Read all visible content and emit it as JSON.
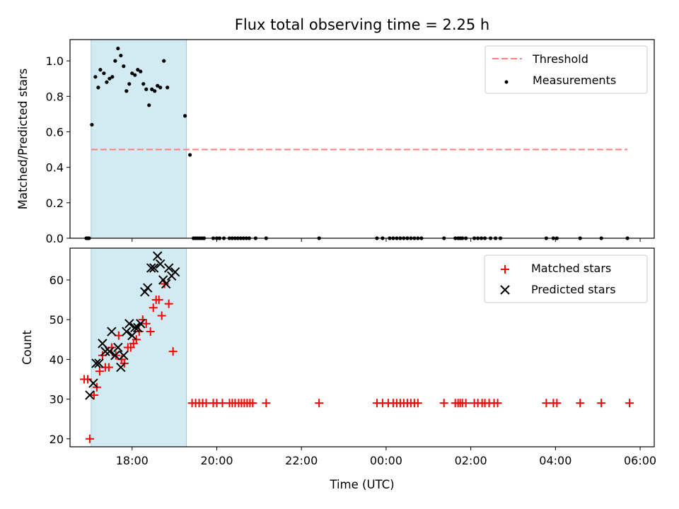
{
  "chart_data": [
    {
      "type": "scatter",
      "title": "Flux total observing time = 2.25 h",
      "xlabel": "",
      "ylabel": "Matched/Predicted stars",
      "xlim": [
        "16:32",
        "06:20"
      ],
      "ylim": [
        0,
        1.12
      ],
      "yticks": [
        "0.0",
        "0.2",
        "0.4",
        "0.6",
        "0.8",
        "1.0"
      ],
      "shaded_interval": {
        "from": "17:02",
        "to": "19:17",
        "color": "#add8e6"
      },
      "threshold": {
        "name": "Threshold",
        "value": 0.5,
        "from": "17:02",
        "to": "05:42",
        "style": "dashed",
        "color": "#ff7f7f"
      },
      "legend": {
        "location": "upper right",
        "entries": [
          "Threshold",
          "Measurements"
        ]
      },
      "series": [
        {
          "name": "Measurements",
          "marker": "dot",
          "color": "#000000",
          "points": [
            [
              "16:55",
              0
            ],
            [
              "16:57",
              0
            ],
            [
              "16:59",
              0
            ],
            [
              "17:03",
              0.64
            ],
            [
              "17:08",
              0.91
            ],
            [
              "17:12",
              0.85
            ],
            [
              "17:15",
              0.95
            ],
            [
              "17:20",
              0.93
            ],
            [
              "17:24",
              0.88
            ],
            [
              "17:28",
              0.9
            ],
            [
              "17:32",
              0.91
            ],
            [
              "17:36",
              1.0
            ],
            [
              "17:40",
              1.07
            ],
            [
              "17:44",
              1.03
            ],
            [
              "17:48",
              0.97
            ],
            [
              "17:52",
              0.83
            ],
            [
              "17:56",
              0.87
            ],
            [
              "18:00",
              0.93
            ],
            [
              "18:04",
              0.92
            ],
            [
              "18:08",
              0.95
            ],
            [
              "18:12",
              0.94
            ],
            [
              "18:16",
              0.87
            ],
            [
              "18:20",
              0.84
            ],
            [
              "18:24",
              0.75
            ],
            [
              "18:28",
              0.84
            ],
            [
              "18:32",
              0.83
            ],
            [
              "18:36",
              0.86
            ],
            [
              "18:40",
              0.85
            ],
            [
              "18:45",
              1.0
            ],
            [
              "18:50",
              0.85
            ],
            [
              "19:15",
              0.69
            ],
            [
              "19:22",
              0.47
            ],
            [
              "19:27",
              0
            ],
            [
              "19:30",
              0
            ],
            [
              "19:33",
              0
            ],
            [
              "19:36",
              0
            ],
            [
              "19:39",
              0
            ],
            [
              "19:42",
              0
            ],
            [
              "19:55",
              0
            ],
            [
              "20:00",
              0
            ],
            [
              "20:04",
              0
            ],
            [
              "20:10",
              0
            ],
            [
              "20:18",
              0
            ],
            [
              "20:22",
              0
            ],
            [
              "20:26",
              0
            ],
            [
              "20:30",
              0
            ],
            [
              "20:34",
              0
            ],
            [
              "20:38",
              0
            ],
            [
              "20:42",
              0
            ],
            [
              "20:46",
              0
            ],
            [
              "20:55",
              0
            ],
            [
              "21:10",
              0
            ],
            [
              "22:25",
              0
            ],
            [
              "23:47",
              0
            ],
            [
              "23:55",
              0
            ],
            [
              "00:05",
              0
            ],
            [
              "00:10",
              0
            ],
            [
              "00:15",
              0
            ],
            [
              "00:20",
              0
            ],
            [
              "00:25",
              0
            ],
            [
              "00:30",
              0
            ],
            [
              "00:35",
              0
            ],
            [
              "00:40",
              0
            ],
            [
              "00:45",
              0
            ],
            [
              "00:50",
              0
            ],
            [
              "01:22",
              0
            ],
            [
              "01:38",
              0
            ],
            [
              "01:42",
              0
            ],
            [
              "01:45",
              0
            ],
            [
              "01:48",
              0
            ],
            [
              "01:53",
              0
            ],
            [
              "02:05",
              0
            ],
            [
              "02:10",
              0
            ],
            [
              "02:15",
              0
            ],
            [
              "02:20",
              0
            ],
            [
              "02:28",
              0
            ],
            [
              "02:35",
              0
            ],
            [
              "02:42",
              0
            ],
            [
              "03:47",
              0
            ],
            [
              "03:57",
              0
            ],
            [
              "04:02",
              0
            ],
            [
              "04:35",
              0
            ],
            [
              "05:05",
              0
            ],
            [
              "05:42",
              0
            ]
          ]
        }
      ]
    },
    {
      "type": "scatter",
      "title": "",
      "xlabel": "Time (UTC)",
      "ylabel": "Count",
      "xlim": [
        "16:32",
        "06:20"
      ],
      "ylim": [
        18,
        68
      ],
      "yticks": [
        "20",
        "30",
        "40",
        "50",
        "60"
      ],
      "xticks": [
        "18:00",
        "20:00",
        "22:00",
        "00:00",
        "02:00",
        "04:00",
        "06:00"
      ],
      "shaded_interval": {
        "from": "17:02",
        "to": "19:17",
        "color": "#add8e6"
      },
      "legend": {
        "location": "upper right",
        "entries": [
          "Matched stars",
          "Predicted stars"
        ]
      },
      "series": [
        {
          "name": "Matched stars",
          "marker": "plus",
          "color": "#ff0000",
          "points": [
            [
              "16:52",
              35
            ],
            [
              "16:57",
              35
            ],
            [
              "17:00",
              20
            ],
            [
              "17:06",
              31
            ],
            [
              "17:10",
              33
            ],
            [
              "17:14",
              37
            ],
            [
              "17:18",
              41
            ],
            [
              "17:22",
              38
            ],
            [
              "17:27",
              38
            ],
            [
              "17:31",
              43
            ],
            [
              "17:37",
              41
            ],
            [
              "17:41",
              46
            ],
            [
              "17:45",
              40
            ],
            [
              "17:49",
              39
            ],
            [
              "17:54",
              43
            ],
            [
              "17:58",
              43
            ],
            [
              "18:02",
              44
            ],
            [
              "18:06",
              45
            ],
            [
              "18:10",
              47
            ],
            [
              "18:15",
              50
            ],
            [
              "18:20",
              49
            ],
            [
              "18:26",
              47
            ],
            [
              "18:30",
              53
            ],
            [
              "18:34",
              55
            ],
            [
              "18:38",
              55
            ],
            [
              "18:42",
              51
            ],
            [
              "18:46",
              59
            ],
            [
              "18:52",
              54
            ],
            [
              "18:58",
              42
            ],
            [
              "19:25",
              29
            ],
            [
              "19:30",
              29
            ],
            [
              "19:35",
              29
            ],
            [
              "19:40",
              29
            ],
            [
              "19:45",
              29
            ],
            [
              "19:55",
              29
            ],
            [
              "20:00",
              29
            ],
            [
              "20:08",
              29
            ],
            [
              "20:18",
              29
            ],
            [
              "20:22",
              29
            ],
            [
              "20:26",
              29
            ],
            [
              "20:31",
              29
            ],
            [
              "20:35",
              29
            ],
            [
              "20:39",
              29
            ],
            [
              "20:43",
              29
            ],
            [
              "20:47",
              29
            ],
            [
              "20:51",
              29
            ],
            [
              "21:10",
              29
            ],
            [
              "22:25",
              29
            ],
            [
              "23:47",
              29
            ],
            [
              "23:55",
              29
            ],
            [
              "00:03",
              29
            ],
            [
              "00:10",
              29
            ],
            [
              "00:15",
              29
            ],
            [
              "00:20",
              29
            ],
            [
              "00:25",
              29
            ],
            [
              "00:30",
              29
            ],
            [
              "00:35",
              29
            ],
            [
              "00:40",
              29
            ],
            [
              "00:45",
              29
            ],
            [
              "01:22",
              29
            ],
            [
              "01:38",
              29
            ],
            [
              "01:42",
              29
            ],
            [
              "01:45",
              29
            ],
            [
              "01:48",
              29
            ],
            [
              "01:53",
              29
            ],
            [
              "02:05",
              29
            ],
            [
              "02:10",
              29
            ],
            [
              "02:16",
              29
            ],
            [
              "02:20",
              29
            ],
            [
              "02:26",
              29
            ],
            [
              "02:33",
              29
            ],
            [
              "02:38",
              29
            ],
            [
              "03:47",
              29
            ],
            [
              "03:57",
              29
            ],
            [
              "04:02",
              29
            ],
            [
              "04:35",
              29
            ],
            [
              "05:05",
              29
            ],
            [
              "05:45",
              29
            ]
          ]
        },
        {
          "name": "Predicted stars",
          "marker": "x",
          "color": "#000000",
          "points": [
            [
              "17:00",
              31
            ],
            [
              "17:05",
              34
            ],
            [
              "17:09",
              39
            ],
            [
              "17:13",
              39
            ],
            [
              "17:18",
              44
            ],
            [
              "17:22",
              42
            ],
            [
              "17:28",
              42
            ],
            [
              "17:31",
              47
            ],
            [
              "17:36",
              41
            ],
            [
              "17:40",
              43
            ],
            [
              "17:44",
              38
            ],
            [
              "17:48",
              41
            ],
            [
              "17:52",
              47
            ],
            [
              "17:56",
              49
            ],
            [
              "18:00",
              46
            ],
            [
              "18:04",
              48
            ],
            [
              "18:08",
              48
            ],
            [
              "18:12",
              49
            ],
            [
              "18:18",
              57
            ],
            [
              "18:22",
              58
            ],
            [
              "18:27",
              63
            ],
            [
              "18:31",
              63
            ],
            [
              "18:36",
              66
            ],
            [
              "18:40",
              64
            ],
            [
              "18:44",
              60
            ],
            [
              "18:48",
              59
            ],
            [
              "18:52",
              63
            ],
            [
              "18:56",
              61
            ],
            [
              "19:01",
              62
            ]
          ]
        }
      ]
    }
  ]
}
